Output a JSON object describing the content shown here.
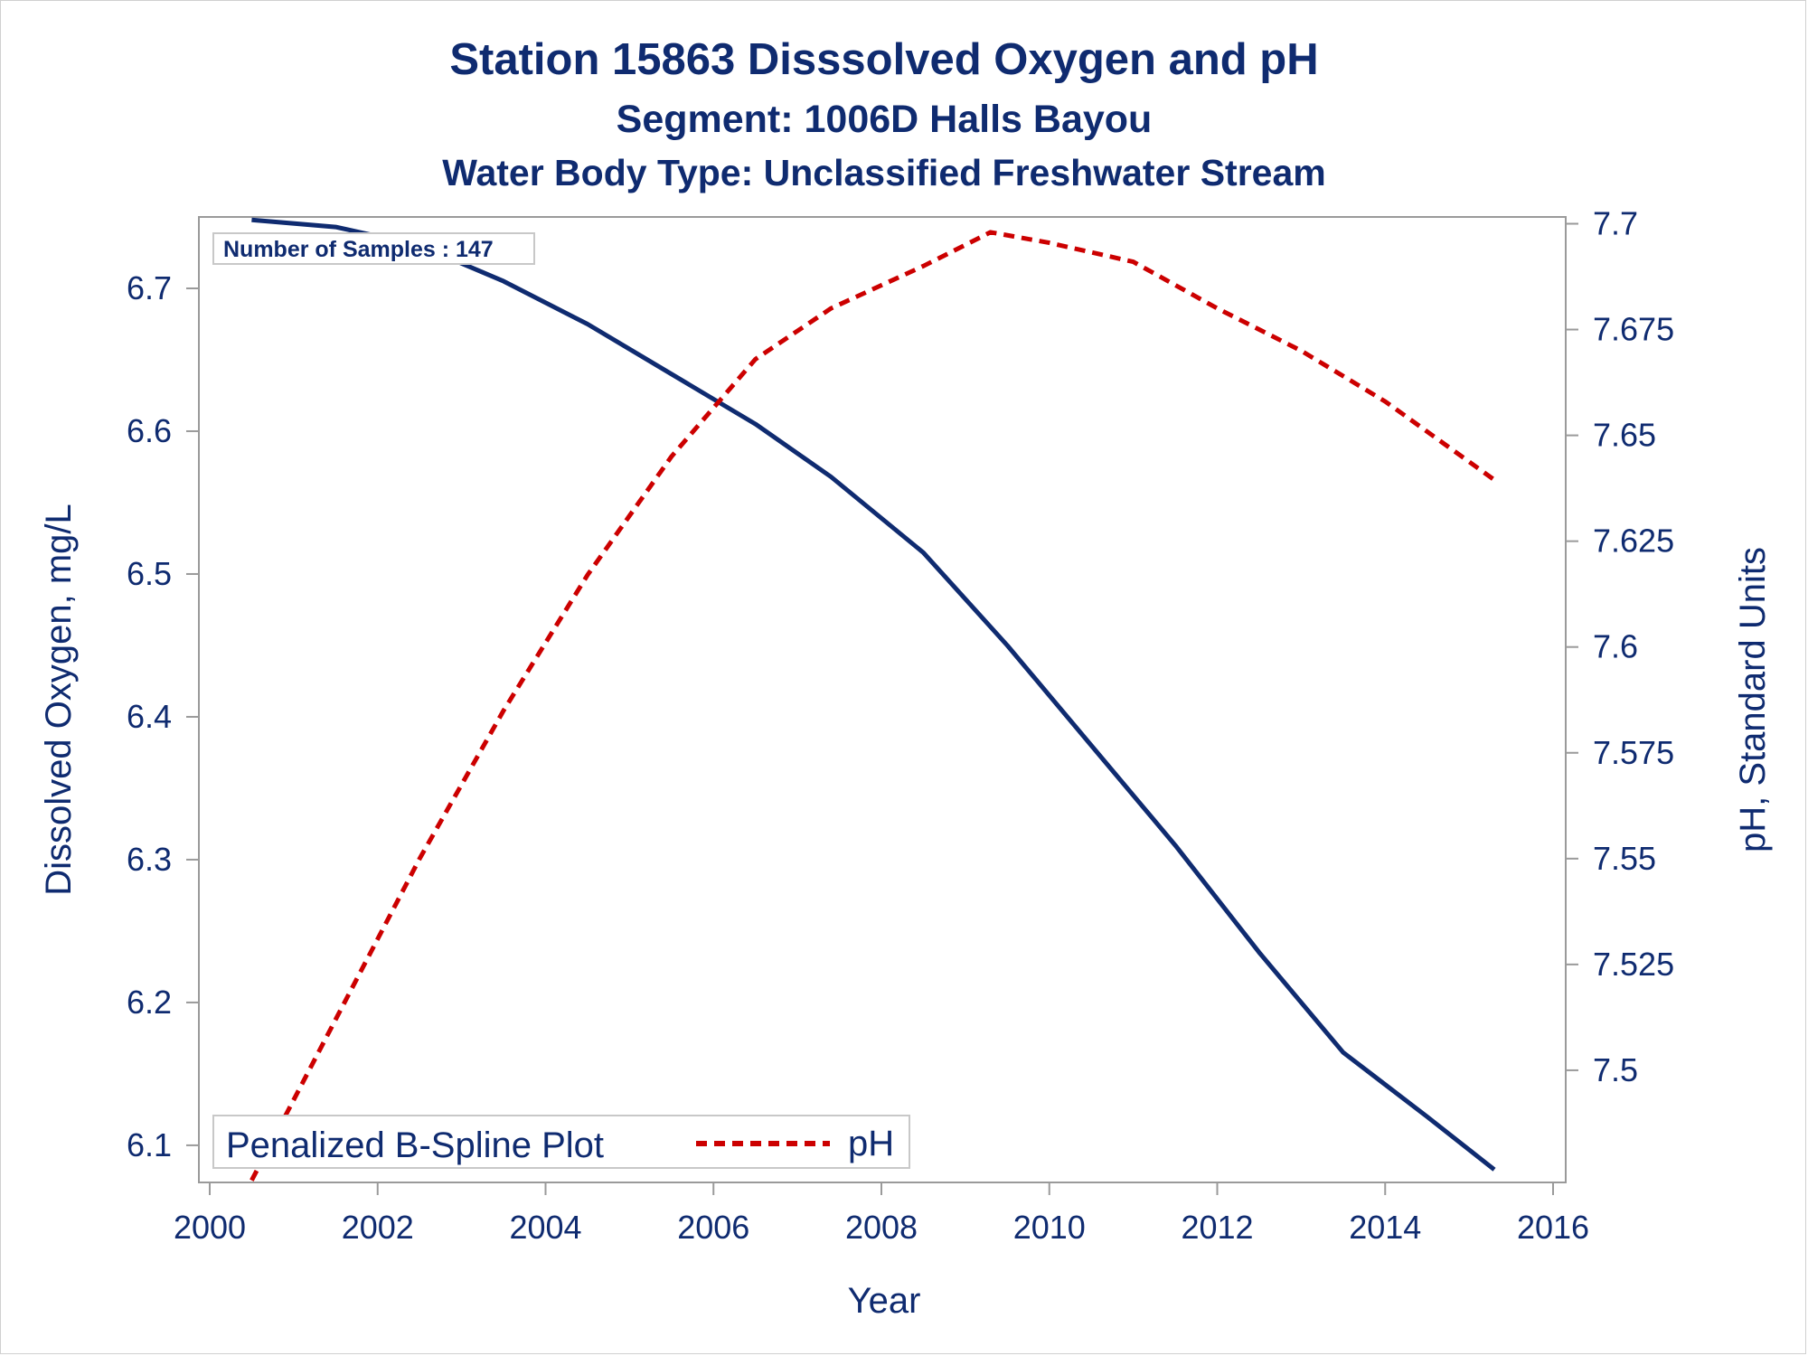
{
  "chart_data": {
    "type": "line",
    "title": "Station 15863   Disssolved Oxygen and pH",
    "subtitle": "Segment: 1006D  Halls Bayou",
    "subtitle2": "Water Body Type: Unclassified Freshwater Stream",
    "xlabel": "Year",
    "ylabel_left": "Dissolved Oxygen, mg/L",
    "ylabel_right": "pH, Standard Units",
    "xlim": [
      2000,
      2016
    ],
    "ylim_left": [
      6.074,
      6.75
    ],
    "ylim_right": [
      7.4735,
      7.7016
    ],
    "x_ticks": [
      "2000",
      "2002",
      "2004",
      "2006",
      "2008",
      "2010",
      "2012",
      "2014",
      "2016"
    ],
    "y_ticks_left": [
      "6.1",
      "6.2",
      "6.3",
      "6.4",
      "6.5",
      "6.6",
      "6.7"
    ],
    "y_ticks_right": [
      "7.5",
      "7.525",
      "7.55",
      "7.575",
      "7.6",
      "7.625",
      "7.65",
      "7.675",
      "7.7"
    ],
    "grid": false,
    "inset_label": "Number of Samples : 147",
    "legend": {
      "title": "Penalized B-Spline Plot",
      "position": "bottom-left",
      "entries": [
        "pH"
      ]
    },
    "series": [
      {
        "key": "dissolved_oxygen",
        "axis": "left",
        "color": "#0f2b70",
        "style": "solid",
        "x": [
          2000.5,
          2001.5,
          2002.5,
          2003.5,
          2004.5,
          2005.5,
          2006.5,
          2007.4,
          2008.5,
          2009.5,
          2010.5,
          2011.5,
          2012.5,
          2013.5,
          2014.5,
          2015.3
        ],
        "y": [
          6.748,
          6.743,
          6.73,
          6.705,
          6.675,
          6.64,
          6.605,
          6.568,
          6.515,
          6.45,
          6.38,
          6.31,
          6.235,
          6.165,
          6.12,
          6.083
        ]
      },
      {
        "name": "pH",
        "axis": "right",
        "color": "#cc0000",
        "style": "dashed",
        "x": [
          2000.5,
          2001.5,
          2002.5,
          2003.5,
          2004.5,
          2005.5,
          2006.5,
          2007.4,
          2008.5,
          2009.3,
          2010,
          2011,
          2012,
          2013,
          2014,
          2015.3
        ],
        "y": [
          7.474,
          7.512,
          7.55,
          7.585,
          7.617,
          7.645,
          7.668,
          7.68,
          7.69,
          7.698,
          7.6955,
          7.691,
          7.68,
          7.67,
          7.658,
          7.6395
        ]
      }
    ]
  }
}
